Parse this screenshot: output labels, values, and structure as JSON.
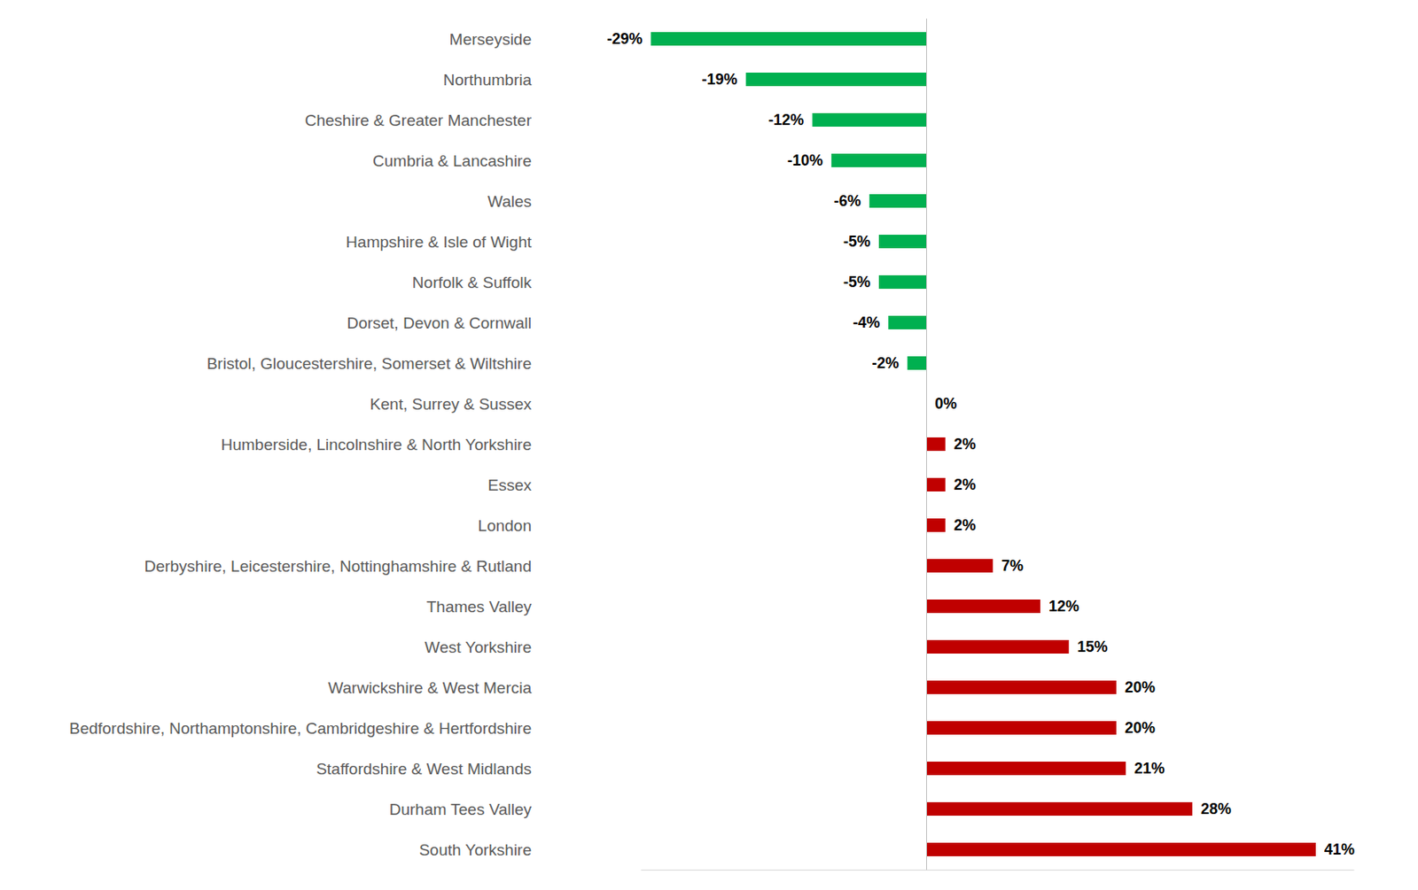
{
  "chart_data": {
    "type": "bar",
    "orientation": "horizontal",
    "categories": [
      "Merseyside",
      "Northumbria",
      "Cheshire & Greater Manchester",
      "Cumbria & Lancashire",
      "Wales",
      "Hampshire & Isle of Wight",
      "Norfolk & Suffolk",
      "Dorset, Devon & Cornwall",
      "Bristol, Gloucestershire, Somerset & Wiltshire",
      "Kent, Surrey & Sussex",
      "Humberside, Lincolnshire & North Yorkshire",
      "Essex",
      "London",
      "Derbyshire, Leicestershire, Nottinghamshire & Rutland",
      "Thames Valley",
      "West Yorkshire",
      "Warwickshire & West Mercia",
      "Bedfordshire, Northamptonshire, Cambridgeshire & Hertfordshire",
      "Staffordshire & West Midlands",
      "Durham Tees Valley",
      "South Yorkshire"
    ],
    "values": [
      -29,
      -19,
      -12,
      -10,
      -6,
      -5,
      -5,
      -4,
      -2,
      0,
      2,
      2,
      2,
      7,
      12,
      15,
      20,
      20,
      21,
      28,
      41
    ],
    "value_labels": [
      "-29%",
      "-19%",
      "-12%",
      "-10%",
      "-6%",
      "-5%",
      "-5%",
      "-4%",
      "-2%",
      "0%",
      "2%",
      "2%",
      "2%",
      "7%",
      "12%",
      "15%",
      "20%",
      "20%",
      "21%",
      "28%",
      "41%"
    ],
    "colors": [
      "#00b050",
      "#00b050",
      "#00b050",
      "#00b050",
      "#00b050",
      "#00b050",
      "#00b050",
      "#00b050",
      "#00b050",
      "#c00000",
      "#c00000",
      "#c00000",
      "#c00000",
      "#c00000",
      "#c00000",
      "#c00000",
      "#c00000",
      "#c00000",
      "#c00000",
      "#c00000",
      "#c00000"
    ],
    "xlim": [
      -30,
      45
    ],
    "data_labels": true,
    "tick_labels": false,
    "grid": false
  }
}
